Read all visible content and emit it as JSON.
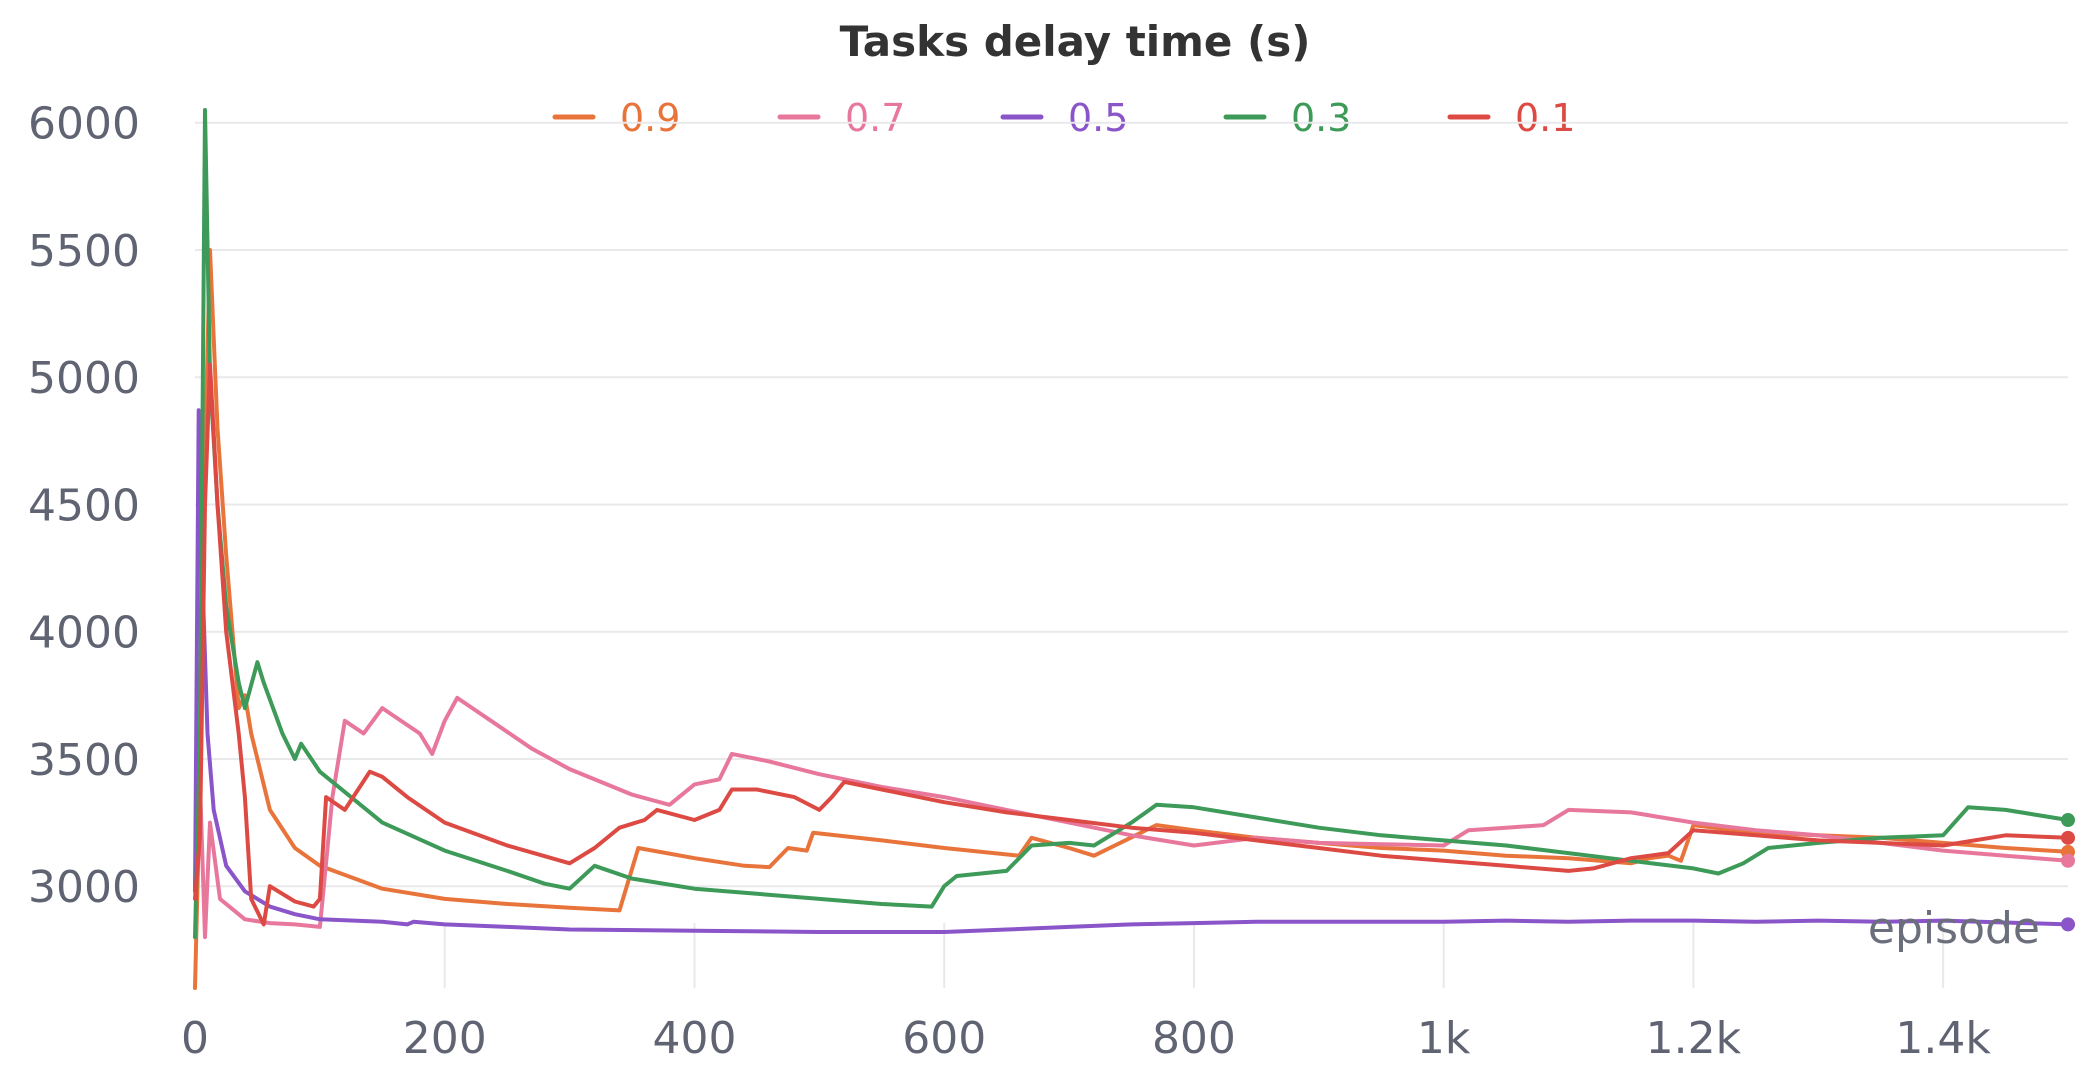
{
  "chart_data": {
    "type": "line",
    "title": "Tasks delay time (s)",
    "xlabel": "episode",
    "ylabel": "",
    "xlim": [
      0,
      1500
    ],
    "ylim": [
      2600,
      6050
    ],
    "x_ticks": [
      0,
      200,
      400,
      600,
      800,
      1000,
      1200,
      1400
    ],
    "x_tick_labels": [
      "0",
      "200",
      "400",
      "600",
      "800",
      "1k",
      "1.2k",
      "1.4k"
    ],
    "y_ticks": [
      3000,
      3500,
      4000,
      4500,
      5000,
      5500,
      6000
    ],
    "y_tick_labels": [
      "3000",
      "3500",
      "4000",
      "4500",
      "5000",
      "5500",
      "6000"
    ],
    "grid": true,
    "legend": "top-center",
    "series": [
      {
        "name": "0.9",
        "color": "#e8743b",
        "points": [
          [
            0,
            2600
          ],
          [
            4,
            3400
          ],
          [
            8,
            4700
          ],
          [
            12,
            5500
          ],
          [
            18,
            4800
          ],
          [
            25,
            4300
          ],
          [
            35,
            3700
          ],
          [
            40,
            3750
          ],
          [
            45,
            3600
          ],
          [
            60,
            3300
          ],
          [
            80,
            3150
          ],
          [
            100,
            3080
          ],
          [
            150,
            2990
          ],
          [
            200,
            2950
          ],
          [
            250,
            2930
          ],
          [
            300,
            2915
          ],
          [
            340,
            2905
          ],
          [
            355,
            3150
          ],
          [
            400,
            3110
          ],
          [
            440,
            3080
          ],
          [
            460,
            3075
          ],
          [
            475,
            3150
          ],
          [
            490,
            3140
          ],
          [
            495,
            3210
          ],
          [
            550,
            3180
          ],
          [
            600,
            3150
          ],
          [
            660,
            3120
          ],
          [
            670,
            3190
          ],
          [
            700,
            3150
          ],
          [
            720,
            3120
          ],
          [
            770,
            3240
          ],
          [
            800,
            3220
          ],
          [
            850,
            3190
          ],
          [
            900,
            3170
          ],
          [
            950,
            3150
          ],
          [
            1000,
            3140
          ],
          [
            1050,
            3120
          ],
          [
            1100,
            3110
          ],
          [
            1150,
            3090
          ],
          [
            1165,
            3110
          ],
          [
            1180,
            3120
          ],
          [
            1190,
            3100
          ],
          [
            1200,
            3240
          ],
          [
            1250,
            3210
          ],
          [
            1300,
            3200
          ],
          [
            1350,
            3190
          ],
          [
            1400,
            3170
          ],
          [
            1450,
            3150
          ],
          [
            1500,
            3135
          ]
        ]
      },
      {
        "name": "0.7",
        "color": "#e8779c",
        "points": [
          [
            0,
            3000
          ],
          [
            4,
            3400
          ],
          [
            8,
            2800
          ],
          [
            12,
            3250
          ],
          [
            20,
            2950
          ],
          [
            40,
            2870
          ],
          [
            60,
            2855
          ],
          [
            80,
            2850
          ],
          [
            100,
            2840
          ],
          [
            110,
            3350
          ],
          [
            120,
            3650
          ],
          [
            135,
            3600
          ],
          [
            150,
            3700
          ],
          [
            180,
            3600
          ],
          [
            190,
            3520
          ],
          [
            200,
            3650
          ],
          [
            210,
            3740
          ],
          [
            240,
            3640
          ],
          [
            270,
            3540
          ],
          [
            300,
            3460
          ],
          [
            350,
            3360
          ],
          [
            380,
            3320
          ],
          [
            400,
            3400
          ],
          [
            420,
            3420
          ],
          [
            430,
            3520
          ],
          [
            460,
            3490
          ],
          [
            500,
            3440
          ],
          [
            550,
            3390
          ],
          [
            600,
            3350
          ],
          [
            650,
            3300
          ],
          [
            700,
            3250
          ],
          [
            750,
            3200
          ],
          [
            800,
            3160
          ],
          [
            850,
            3190
          ],
          [
            900,
            3170
          ],
          [
            950,
            3165
          ],
          [
            1000,
            3160
          ],
          [
            1020,
            3220
          ],
          [
            1050,
            3230
          ],
          [
            1080,
            3240
          ],
          [
            1100,
            3300
          ],
          [
            1150,
            3290
          ],
          [
            1200,
            3250
          ],
          [
            1250,
            3220
          ],
          [
            1300,
            3200
          ],
          [
            1350,
            3170
          ],
          [
            1400,
            3140
          ],
          [
            1450,
            3120
          ],
          [
            1500,
            3100
          ]
        ]
      },
      {
        "name": "0.5",
        "color": "#8a55c8",
        "points": [
          [
            0,
            2980
          ],
          [
            3,
            4870
          ],
          [
            6,
            4200
          ],
          [
            10,
            3600
          ],
          [
            15,
            3300
          ],
          [
            25,
            3080
          ],
          [
            40,
            2980
          ],
          [
            60,
            2920
          ],
          [
            80,
            2890
          ],
          [
            100,
            2870
          ],
          [
            150,
            2860
          ],
          [
            170,
            2850
          ],
          [
            175,
            2860
          ],
          [
            200,
            2850
          ],
          [
            250,
            2840
          ],
          [
            300,
            2830
          ],
          [
            400,
            2825
          ],
          [
            500,
            2820
          ],
          [
            600,
            2820
          ],
          [
            650,
            2830
          ],
          [
            700,
            2840
          ],
          [
            750,
            2850
          ],
          [
            800,
            2855
          ],
          [
            850,
            2860
          ],
          [
            900,
            2860
          ],
          [
            1000,
            2860
          ],
          [
            1050,
            2865
          ],
          [
            1100,
            2860
          ],
          [
            1150,
            2865
          ],
          [
            1200,
            2865
          ],
          [
            1250,
            2860
          ],
          [
            1300,
            2865
          ],
          [
            1350,
            2860
          ],
          [
            1400,
            2865
          ],
          [
            1500,
            2850
          ]
        ]
      },
      {
        "name": "0.3",
        "color": "#3d9a58",
        "points": [
          [
            0,
            2800
          ],
          [
            4,
            3600
          ],
          [
            8,
            6050
          ],
          [
            12,
            5000
          ],
          [
            18,
            4500
          ],
          [
            25,
            4100
          ],
          [
            35,
            3800
          ],
          [
            40,
            3700
          ],
          [
            50,
            3880
          ],
          [
            55,
            3800
          ],
          [
            70,
            3600
          ],
          [
            80,
            3500
          ],
          [
            85,
            3560
          ],
          [
            100,
            3450
          ],
          [
            150,
            3250
          ],
          [
            200,
            3140
          ],
          [
            250,
            3060
          ],
          [
            280,
            3010
          ],
          [
            300,
            2990
          ],
          [
            320,
            3080
          ],
          [
            350,
            3030
          ],
          [
            400,
            2990
          ],
          [
            450,
            2970
          ],
          [
            500,
            2950
          ],
          [
            550,
            2930
          ],
          [
            590,
            2920
          ],
          [
            600,
            3000
          ],
          [
            610,
            3040
          ],
          [
            650,
            3060
          ],
          [
            670,
            3160
          ],
          [
            700,
            3170
          ],
          [
            720,
            3160
          ],
          [
            750,
            3250
          ],
          [
            770,
            3320
          ],
          [
            800,
            3310
          ],
          [
            850,
            3270
          ],
          [
            900,
            3230
          ],
          [
            950,
            3200
          ],
          [
            1000,
            3180
          ],
          [
            1050,
            3160
          ],
          [
            1100,
            3130
          ],
          [
            1150,
            3100
          ],
          [
            1200,
            3070
          ],
          [
            1220,
            3050
          ],
          [
            1240,
            3090
          ],
          [
            1260,
            3150
          ],
          [
            1300,
            3170
          ],
          [
            1350,
            3190
          ],
          [
            1400,
            3200
          ],
          [
            1420,
            3310
          ],
          [
            1450,
            3300
          ],
          [
            1500,
            3260
          ]
        ]
      },
      {
        "name": "0.1",
        "color": "#dc4a43",
        "points": [
          [
            0,
            2950
          ],
          [
            4,
            3200
          ],
          [
            8,
            4500
          ],
          [
            12,
            5050
          ],
          [
            18,
            4500
          ],
          [
            25,
            4000
          ],
          [
            35,
            3600
          ],
          [
            40,
            3350
          ],
          [
            45,
            2950
          ],
          [
            55,
            2850
          ],
          [
            60,
            3000
          ],
          [
            80,
            2940
          ],
          [
            95,
            2920
          ],
          [
            100,
            2950
          ],
          [
            105,
            3350
          ],
          [
            120,
            3300
          ],
          [
            140,
            3450
          ],
          [
            150,
            3430
          ],
          [
            170,
            3350
          ],
          [
            200,
            3250
          ],
          [
            250,
            3160
          ],
          [
            300,
            3090
          ],
          [
            320,
            3150
          ],
          [
            340,
            3230
          ],
          [
            360,
            3260
          ],
          [
            370,
            3300
          ],
          [
            400,
            3260
          ],
          [
            420,
            3300
          ],
          [
            430,
            3380
          ],
          [
            450,
            3380
          ],
          [
            480,
            3350
          ],
          [
            500,
            3300
          ],
          [
            510,
            3350
          ],
          [
            520,
            3410
          ],
          [
            550,
            3380
          ],
          [
            600,
            3330
          ],
          [
            650,
            3290
          ],
          [
            700,
            3260
          ],
          [
            750,
            3230
          ],
          [
            800,
            3210
          ],
          [
            850,
            3180
          ],
          [
            900,
            3150
          ],
          [
            950,
            3120
          ],
          [
            1000,
            3100
          ],
          [
            1050,
            3080
          ],
          [
            1100,
            3060
          ],
          [
            1120,
            3070
          ],
          [
            1150,
            3110
          ],
          [
            1180,
            3130
          ],
          [
            1200,
            3220
          ],
          [
            1250,
            3200
          ],
          [
            1300,
            3180
          ],
          [
            1350,
            3170
          ],
          [
            1400,
            3160
          ],
          [
            1450,
            3200
          ],
          [
            1500,
            3190
          ]
        ]
      }
    ]
  }
}
